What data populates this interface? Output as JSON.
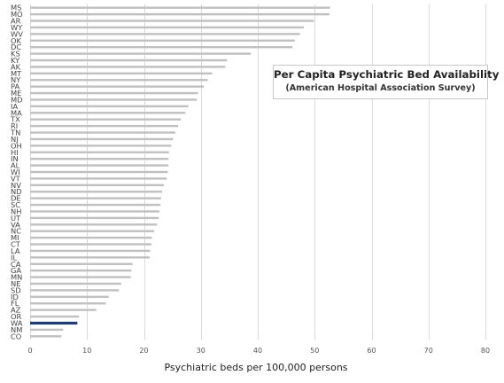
{
  "chart_data": {
    "type": "bar",
    "orientation": "horizontal",
    "title": "Per Capita Psychiatric Bed Availability",
    "subtitle": "(American Hospital Association Survey)",
    "xlabel": "Psychiatric beds per 100,000 persons",
    "ylabel": "",
    "xlim": [
      0,
      80
    ],
    "xticks": [
      "0",
      "10",
      "20",
      "30",
      "40",
      "50",
      "60",
      "70",
      "80"
    ],
    "grid": "vertical",
    "legend": "none",
    "colors": {
      "bar": "#c0c0c0",
      "highlight": "#1f3d73",
      "grid": "#d9d9d9"
    },
    "highlight_category": "WA",
    "categories": [
      "MS",
      "MO",
      "AR",
      "WY",
      "WV",
      "OK",
      "DC",
      "KS",
      "KY",
      "AK",
      "MT",
      "NY",
      "PA",
      "ME",
      "MD",
      "IA",
      "MA",
      "TX",
      "RI",
      "TN",
      "NJ",
      "OH",
      "HI",
      "IN",
      "AL",
      "WI",
      "VT",
      "NV",
      "ND",
      "DE",
      "SC",
      "NH",
      "UT",
      "VA",
      "NC",
      "MI",
      "CT",
      "LA",
      "IL",
      "CA",
      "GA",
      "MN",
      "NE",
      "SD",
      "ID",
      "FL",
      "AZ",
      "OR",
      "WA",
      "NM",
      "CO"
    ],
    "values": [
      52.7,
      52.6,
      49.9,
      48.1,
      47.4,
      46.5,
      46.1,
      38.8,
      34.6,
      34.3,
      32.0,
      31.2,
      30.5,
      29.5,
      29.3,
      27.8,
      27.3,
      26.5,
      26.0,
      25.5,
      25.1,
      24.8,
      24.4,
      24.3,
      24.3,
      24.2,
      24.0,
      23.5,
      23.2,
      23.0,
      22.9,
      22.7,
      22.6,
      22.3,
      21.8,
      21.4,
      21.3,
      21.1,
      21.0,
      18.0,
      17.8,
      17.7,
      16.0,
      15.6,
      13.8,
      13.3,
      11.6,
      8.6,
      8.3,
      5.8,
      5.5
    ]
  }
}
